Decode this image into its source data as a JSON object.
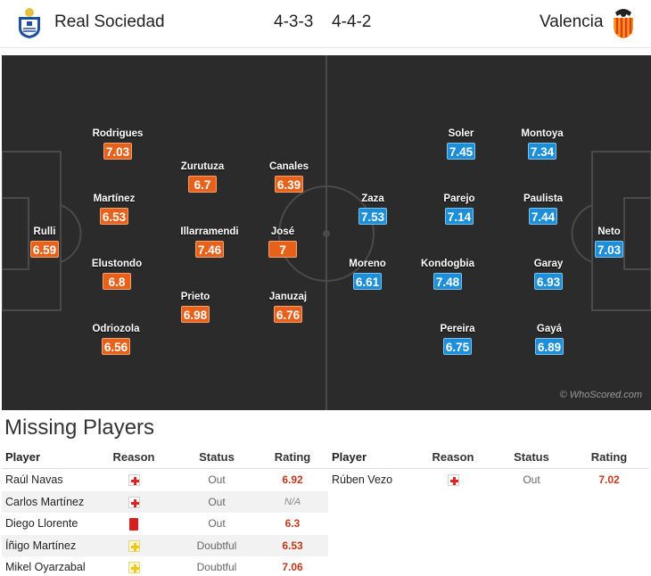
{
  "header": {
    "home_team": "Real Sociedad",
    "home_formation": "4-3-3",
    "away_formation": "4-4-2",
    "away_team": "Valencia",
    "home_crest_icon": "real-sociedad-crest-icon",
    "away_crest_icon": "valencia-crest-icon"
  },
  "pitch": {
    "watermark": "© WhoScored.com",
    "home_players": [
      {
        "name": "Rulli",
        "rating": "6.59"
      },
      {
        "name": "Rodrigues",
        "rating": "7.03"
      },
      {
        "name": "Martínez",
        "rating": "6.53"
      },
      {
        "name": "Elustondo",
        "rating": "6.8"
      },
      {
        "name": "Odriozola",
        "rating": "6.56"
      },
      {
        "name": "Zurutuza",
        "rating": "6.7"
      },
      {
        "name": "Illarramendi",
        "rating": "7.46"
      },
      {
        "name": "Prieto",
        "rating": "6.98"
      },
      {
        "name": "Canales",
        "rating": "6.39"
      },
      {
        "name": "José",
        "rating": "7"
      },
      {
        "name": "Januzaj",
        "rating": "6.76"
      }
    ],
    "away_players": [
      {
        "name": "Zaza",
        "rating": "7.53"
      },
      {
        "name": "Moreno",
        "rating": "6.61"
      },
      {
        "name": "Soler",
        "rating": "7.45"
      },
      {
        "name": "Parejo",
        "rating": "7.14"
      },
      {
        "name": "Kondogbia",
        "rating": "7.48"
      },
      {
        "name": "Pereira",
        "rating": "6.75"
      },
      {
        "name": "Montoya",
        "rating": "7.34"
      },
      {
        "name": "Paulista",
        "rating": "7.44"
      },
      {
        "name": "Garay",
        "rating": "6.93"
      },
      {
        "name": "Gayá",
        "rating": "6.89"
      },
      {
        "name": "Neto",
        "rating": "7.03"
      }
    ],
    "colors": {
      "home_rating": "#e8611a",
      "away_rating": "#1d8fd8",
      "pitch": "#2b2b2b"
    }
  },
  "missing": {
    "title": "Missing Players",
    "columns": {
      "player": "Player",
      "reason": "Reason",
      "status": "Status",
      "rating": "Rating"
    },
    "home": [
      {
        "player": "Raúl Navas",
        "reason_icon": "injury-icon",
        "status": "Out",
        "rating": "6.92"
      },
      {
        "player": "Carlos Martínez",
        "reason_icon": "injury-icon",
        "status": "Out",
        "rating": "N/A"
      },
      {
        "player": "Diego Llorente",
        "reason_icon": "red-card-icon",
        "status": "Out",
        "rating": "6.3"
      },
      {
        "player": "Íñigo Martínez",
        "reason_icon": "doubtful-icon",
        "status": "Doubtful",
        "rating": "6.53"
      },
      {
        "player": "Mikel Oyarzabal",
        "reason_icon": "doubtful-icon",
        "status": "Doubtful",
        "rating": "7.06"
      }
    ],
    "away": [
      {
        "player": "Rúben Vezo",
        "reason_icon": "injury-icon",
        "status": "Out",
        "rating": "7.02"
      }
    ]
  }
}
